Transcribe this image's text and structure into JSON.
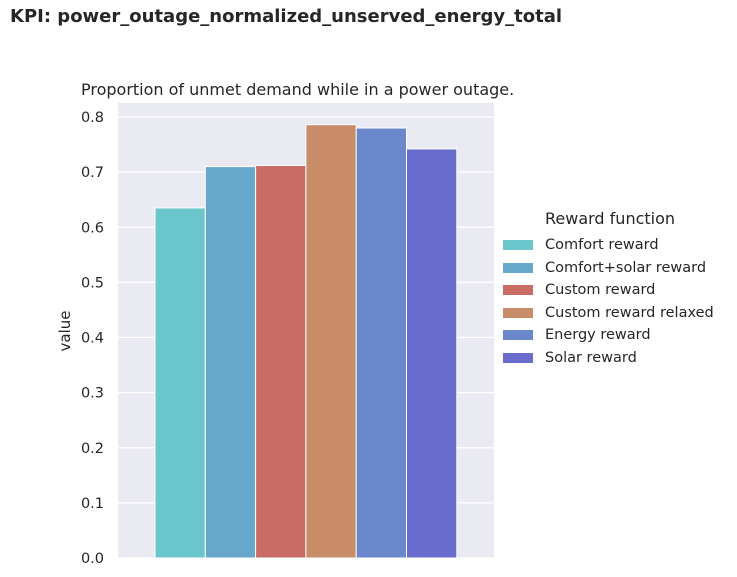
{
  "figure": {
    "suptitle": "KPI: power_outage_normalized_unserved_energy_total"
  },
  "chart_data": {
    "type": "bar",
    "title": "Proportion of unmet demand while in a power outage.",
    "xlabel": "",
    "ylabel": "value",
    "ylim": [
      0,
      0.8
    ],
    "yticks": [
      "0.0",
      "0.1",
      "0.2",
      "0.3",
      "0.4",
      "0.5",
      "0.6",
      "0.7",
      "0.8"
    ],
    "grid": true,
    "legend_title": "Reward function",
    "legend_position": "right",
    "series": [
      {
        "name": "Comfort reward",
        "value": 0.635,
        "color": "#6ac6cb"
      },
      {
        "name": "Comfort+solar reward",
        "value": 0.71,
        "color": "#67a7cb"
      },
      {
        "name": "Custom reward",
        "value": 0.712,
        "color": "#c96c66"
      },
      {
        "name": "Custom reward relaxed",
        "value": 0.786,
        "color": "#c98c69"
      },
      {
        "name": "Energy reward",
        "value": 0.78,
        "color": "#6a88cb"
      },
      {
        "name": "Solar reward",
        "value": 0.742,
        "color": "#696ccc"
      }
    ]
  }
}
